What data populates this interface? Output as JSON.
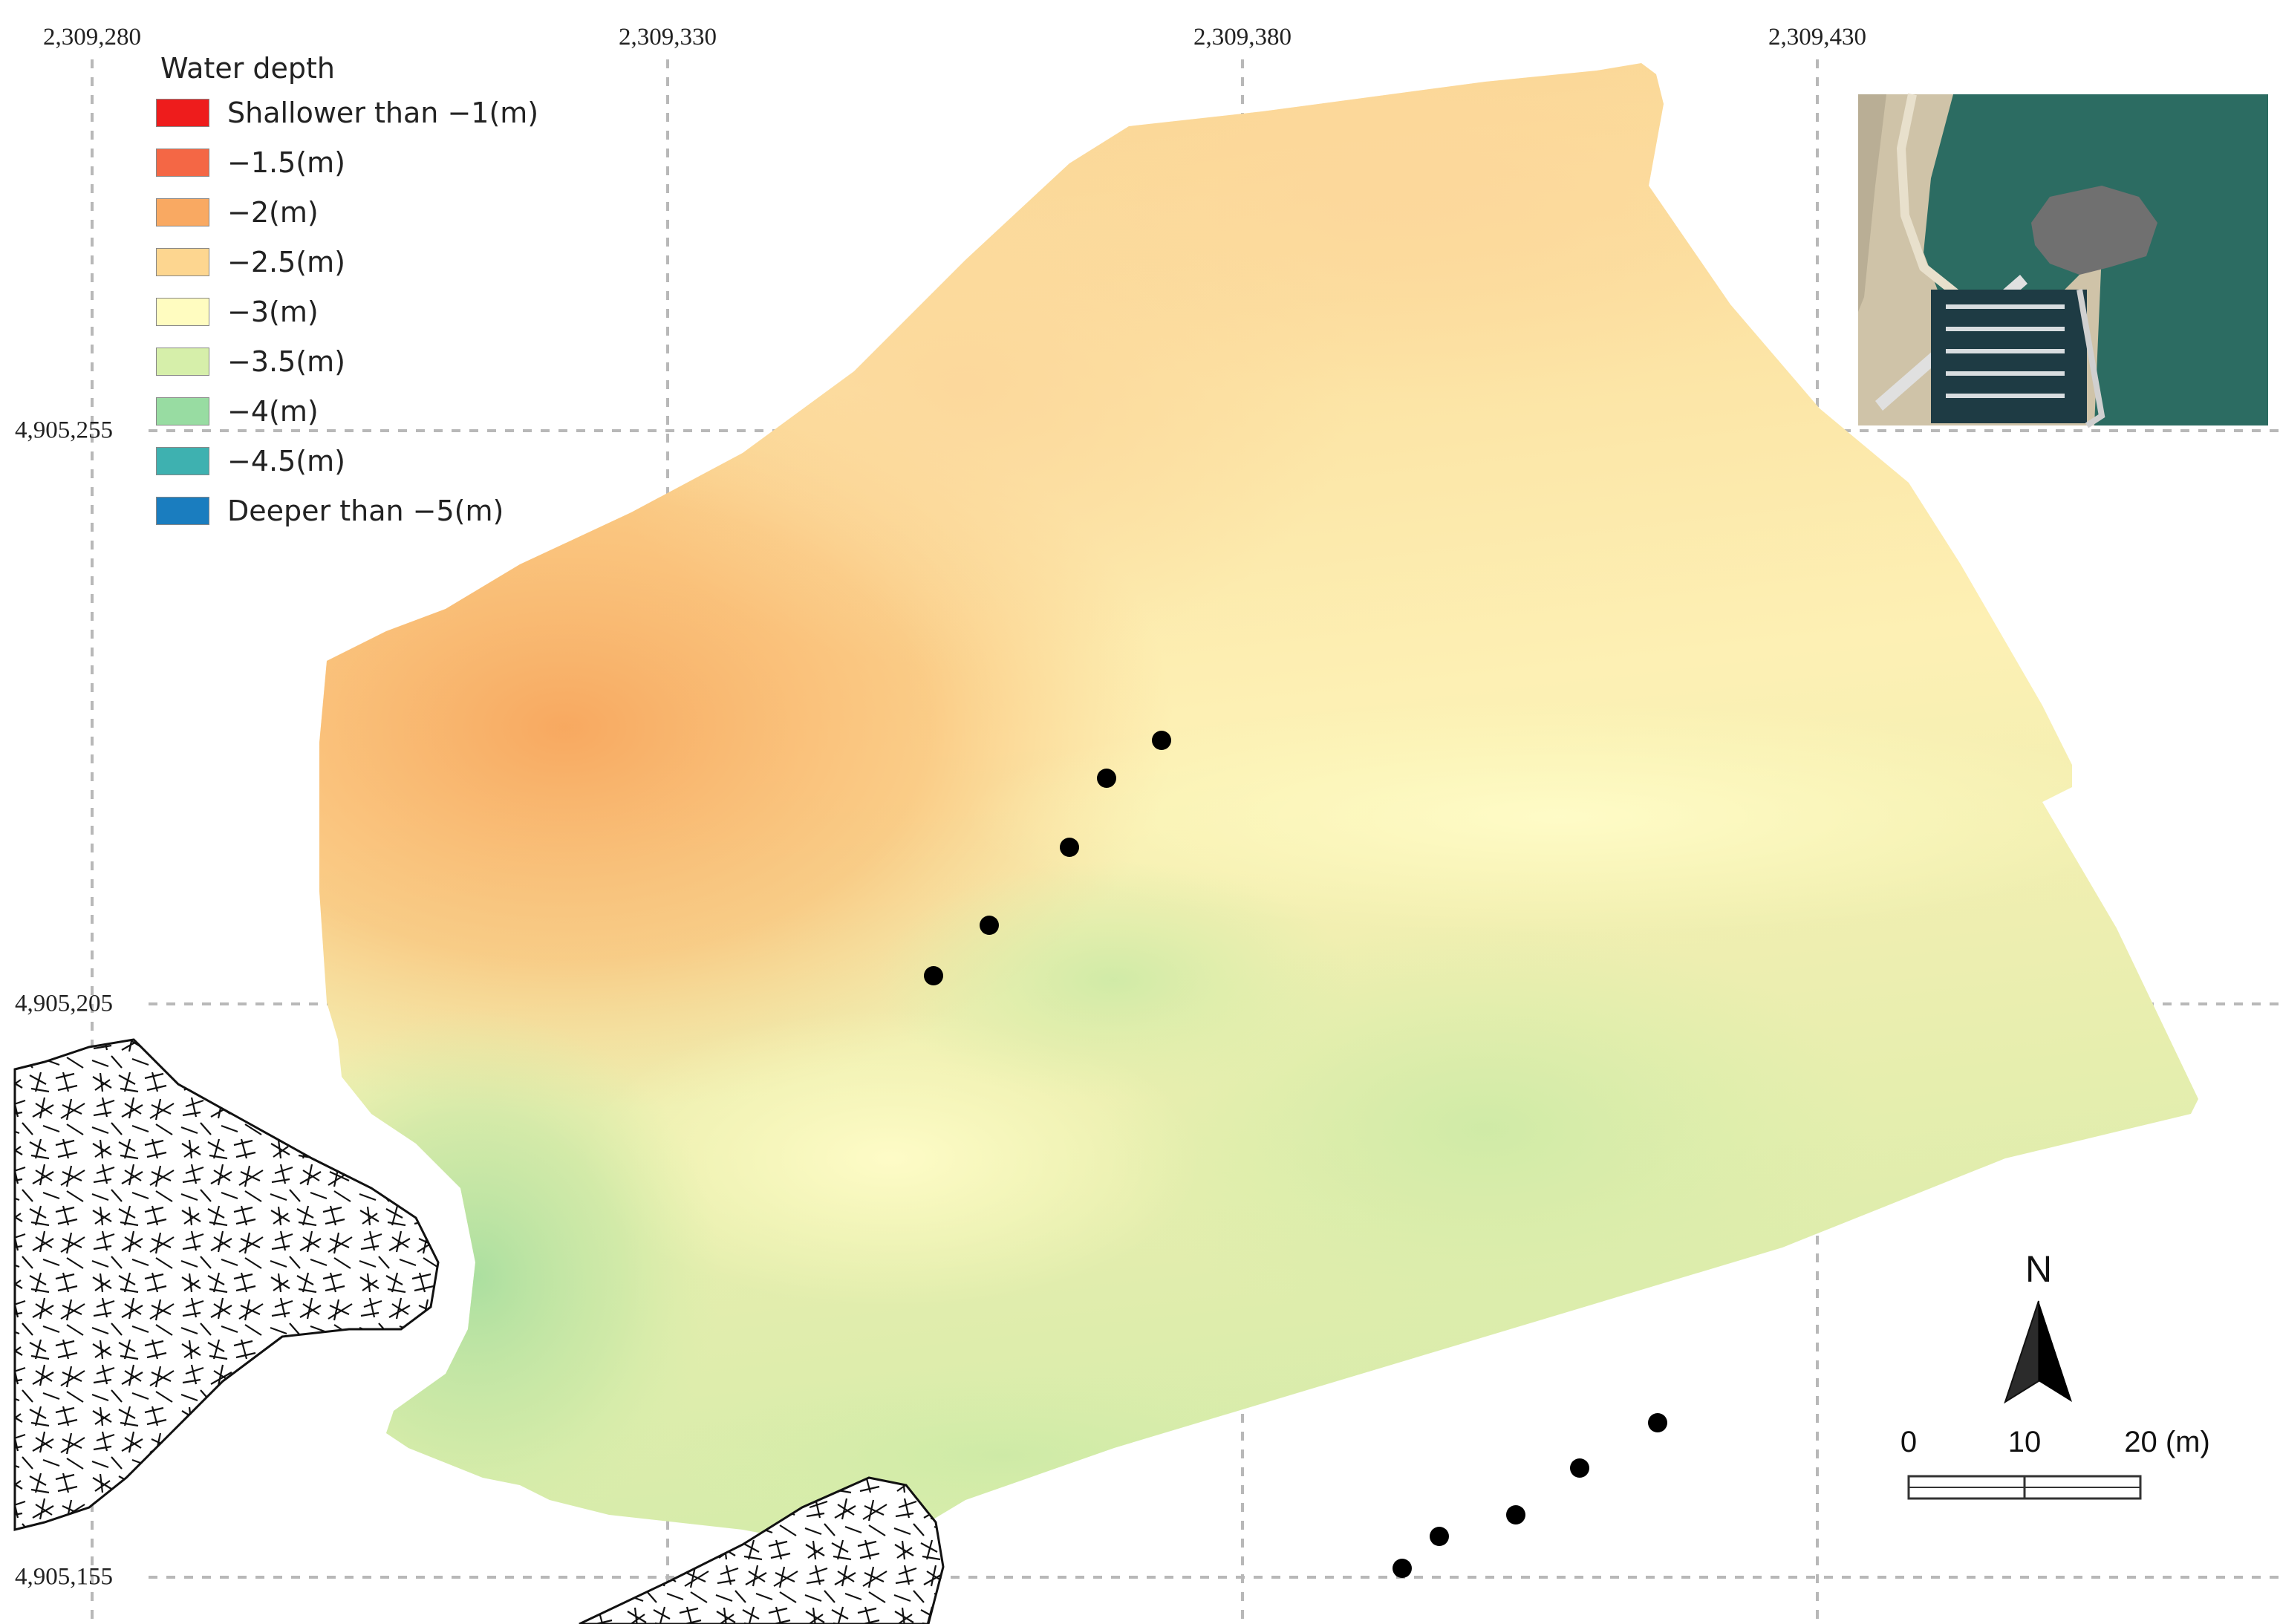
{
  "map": {
    "x_coordinates": [
      "2,309,280",
      "2,309,330",
      "2,309,380",
      "2,309,430"
    ],
    "y_coordinates": [
      "4,905,255",
      "4,905,205",
      "4,905,155"
    ],
    "sample_points_upper_count": 5,
    "sample_points_lower_count": 5
  },
  "legend": {
    "title": "Water depth",
    "items": [
      {
        "label": "Shallower than −1(m)",
        "color": "#ee1c1c"
      },
      {
        "label": "−1.5(m)",
        "color": "#f46745"
      },
      {
        "label": "−2(m)",
        "color": "#f9a962"
      },
      {
        "label": "−2.5(m)",
        "color": "#fdd690"
      },
      {
        "label": "−3(m)",
        "color": "#fffcc0"
      },
      {
        "label": "−3.5(m)",
        "color": "#d6efaa"
      },
      {
        "label": "−4(m)",
        "color": "#98dca2"
      },
      {
        "label": "−4.5(m)",
        "color": "#3eb1b0"
      },
      {
        "label": "Deeper than −5(m)",
        "color": "#1a7dbf"
      }
    ]
  },
  "scale_bar": {
    "labels": [
      "0",
      "10",
      "20 (m)"
    ]
  },
  "north_arrow": {
    "label": "N",
    "icon": "north-arrow-icon"
  },
  "inset": {
    "icon": "satellite-inset-icon",
    "water_color": "#2c6c62",
    "footprint_color": "#707070"
  }
}
